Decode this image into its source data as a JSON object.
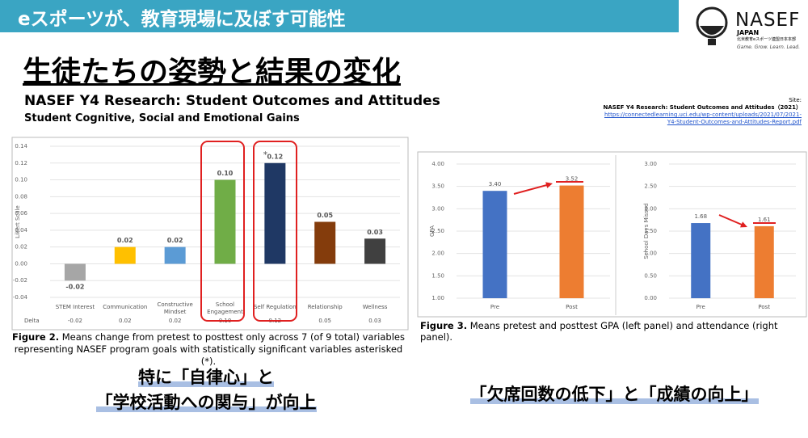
{
  "header": {
    "title": "eスポーツが、教育現場に及ぼす可能性"
  },
  "logo": {
    "name": "NASEF",
    "sub": "JAPAN",
    "org": "北米教育eスポーツ連盟日本本部",
    "tagline": "Game. Grow. Learn. Lead."
  },
  "title": "生徒たちの姿勢と結果の変化",
  "subtitle": "NASEF Y4 Research: Student Outcomes and Attitudes",
  "subtitle2": "Student Cognitive, Social and Emotional Gains",
  "source": {
    "label": "Site:",
    "title": "NASEF Y4 Research: Student Outcomes and Attitudes（2021）",
    "url_lines": [
      "https://connectedlearning.uci.edu/wp-content/uploads/2021/07/2021-",
      "Y4-Student-Outcomes-and-Attitudes-Report.pdf"
    ]
  },
  "chart_data": [
    {
      "type": "bar",
      "y_label": "Likert Scale",
      "categories": [
        "STEM Interest",
        "Communication",
        "Constructive Mindset",
        "School Engagement",
        "Self Regulation",
        "Relationship",
        "Wellness"
      ],
      "values": [
        -0.02,
        0.02,
        0.02,
        0.1,
        0.12,
        0.05,
        0.03
      ],
      "value_labels": [
        "-0.02",
        "0.02",
        "0.02",
        "0.10",
        "0.12",
        "0.05",
        "0.03"
      ],
      "significance_marker": "*",
      "delta_label": "Delta",
      "colors": [
        "#a6a6a6",
        "#ffc000",
        "#5b9bd5",
        "#70ad47",
        "#1f3864",
        "#843c0c",
        "#404040"
      ],
      "ylim": [
        -0.04,
        0.14
      ],
      "yticks": [
        -0.04,
        -0.02,
        {
          "value": 0,
          "label": "0.00"
        },
        0.02,
        0.04,
        0.06,
        0.08,
        {
          "value": 0.1,
          "label": "0.10"
        },
        0.12,
        0.14
      ],
      "grid": true
    },
    {
      "type": "bar",
      "y_label": "GPA",
      "categories": [
        "Pre",
        "Post"
      ],
      "values": [
        3.4,
        3.52
      ],
      "value_labels": [
        "3.40",
        "3.52"
      ],
      "colors": [
        "#4472c4",
        "#ed7d31"
      ],
      "ylim": [
        1,
        4
      ],
      "yticks": [
        {
          "value": 1,
          "label": "1.00"
        },
        {
          "value": 1.5,
          "label": "1.50"
        },
        {
          "value": 2,
          "label": "2.00"
        },
        {
          "value": 2.5,
          "label": "2.50"
        },
        {
          "value": 3,
          "label": "3.00"
        },
        {
          "value": 3.5,
          "label": "3.50"
        },
        {
          "value": 4,
          "label": "4.00"
        }
      ],
      "grid": true
    },
    {
      "type": "bar",
      "y_label": "School Days Missed",
      "categories": [
        "Pre",
        "Post"
      ],
      "values": [
        1.68,
        1.61
      ],
      "value_labels": [
        "1.68",
        "1.61"
      ],
      "colors": [
        "#4472c4",
        "#ed7d31"
      ],
      "ylim": [
        0,
        3
      ],
      "yticks": [
        {
          "value": 0,
          "label": "0.00"
        },
        {
          "value": 0.5,
          "label": "0.50"
        },
        {
          "value": 1,
          "label": "1.00"
        },
        {
          "value": 1.5,
          "label": "1.50"
        },
        {
          "value": 2,
          "label": "2.00"
        },
        {
          "value": 2.5,
          "label": "2.50"
        },
        {
          "value": 3,
          "label": "3.00"
        }
      ],
      "grid": true
    }
  ],
  "captions": [
    {
      "label": "Figure 2.",
      "text": "Means change from pretest to posttest only across 7 (of 9 total) variables representing NASEF program goals with statistically significant variables asterisked (*)."
    },
    {
      "label": "Figure 3.",
      "text": "Means pretest and posttest GPA (left panel) and attendance (right panel)."
    }
  ],
  "takeaways": {
    "left": [
      "特に「自律心」と",
      "「学校活動への関与」が向上"
    ],
    "right": "「欠席回数の低下」と「成績の向上」"
  }
}
